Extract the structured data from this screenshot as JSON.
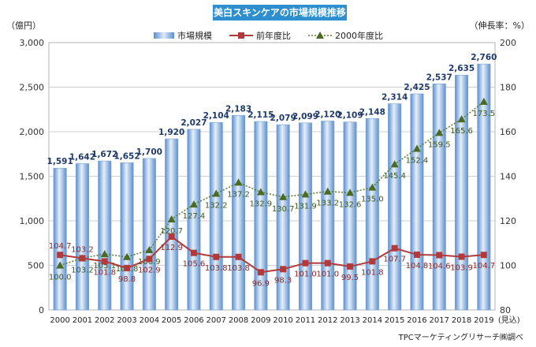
{
  "chart_data": {
    "type": "bar",
    "title": "美白スキンケアの市場規模推移",
    "y_left_unit": "（億円）",
    "y_right_unit": "（伸長率：%）",
    "source": "TPCマーケティングリサーチ㈱調べ",
    "categories": [
      "2000",
      "2001",
      "2002",
      "2003",
      "2004",
      "2005",
      "2006",
      "2007",
      "2008",
      "2009",
      "2010",
      "2011",
      "2012",
      "2013",
      "2014",
      "2015",
      "2016",
      "2017",
      "2018",
      "2019"
    ],
    "category_note": "(見込)",
    "ylim_left": [
      0,
      3000
    ],
    "yticks_left": [
      "0",
      "500",
      "1,000",
      "1,500",
      "2,000",
      "2,500",
      "3,000"
    ],
    "ylim_right": [
      80,
      200
    ],
    "yticks_right": [
      "80",
      "100",
      "120",
      "140",
      "160",
      "180",
      "200"
    ],
    "grid": true,
    "legend_position": "top",
    "series": [
      {
        "name": "市場規模",
        "kind": "bar",
        "axis": "left",
        "values": [
          1591,
          1642,
          1672,
          1652,
          1700,
          1920,
          2027,
          2104,
          2183,
          2115,
          2079,
          2099,
          2120,
          2109,
          2148,
          2314,
          2425,
          2537,
          2635,
          2760
        ],
        "labels": [
          "1,591",
          "1,642",
          "1,672",
          "1,652",
          "1,700",
          "1,920",
          "2,027",
          "2,104",
          "2,183",
          "2,115",
          "2,079",
          "2,099",
          "2,120",
          "2,109",
          "2,148",
          "2,314",
          "2,425",
          "2,537",
          "2,635",
          "2,760"
        ]
      },
      {
        "name": "前年度比",
        "kind": "line",
        "axis": "right",
        "values": [
          104.7,
          103.2,
          101.8,
          98.8,
          102.9,
          112.9,
          105.6,
          103.8,
          103.8,
          96.9,
          98.3,
          101.0,
          101.0,
          99.5,
          101.8,
          107.7,
          104.8,
          104.6,
          103.9,
          104.7
        ],
        "labels": [
          "104.7",
          "103.2",
          "101.8",
          "98.8",
          "102.9",
          "112.9",
          "105.6",
          "103.8",
          "103.8",
          "96.9",
          "98.3",
          "101.0",
          "101.0",
          "99.5",
          "101.8",
          "107.7",
          "104.8",
          "104.6",
          "103.9",
          "104.7"
        ]
      },
      {
        "name": "2000年度比",
        "kind": "line",
        "axis": "right",
        "values": [
          100.0,
          103.2,
          105.1,
          103.8,
          106.9,
          120.7,
          127.4,
          132.2,
          137.2,
          132.9,
          130.7,
          131.9,
          133.2,
          132.6,
          135.0,
          145.4,
          152.4,
          159.5,
          165.6,
          173.5
        ],
        "labels": [
          "100.0",
          "103.2",
          "105.1",
          "103.8",
          "106.9",
          "120.7",
          "127.4",
          "132.2",
          "137.2",
          "132.9",
          "130.7",
          "131.9",
          "133.2",
          "132.6",
          "135.0",
          "145.4",
          "152.4",
          "159.5",
          "165.6",
          "173.5"
        ]
      }
    ],
    "colors": {
      "bar": "#a9c8ea",
      "bar_dark": "#5b8fd0",
      "line_yoy": "#b23a3a",
      "line_base": "#5a7a2a",
      "marker_base": "#4b6a22",
      "value_label": "#1f3a6b"
    }
  }
}
